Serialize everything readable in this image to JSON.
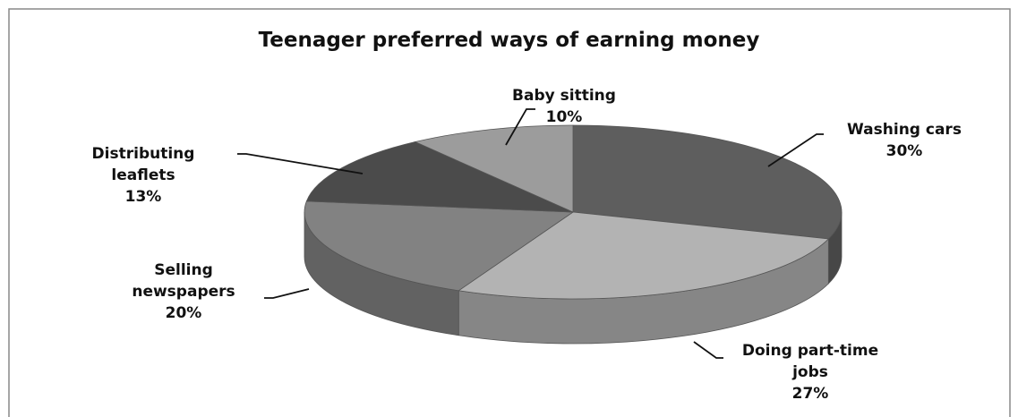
{
  "chart_data": {
    "type": "pie3d",
    "title": "Teenager preferred ways of earning money",
    "categories": [
      "Washing cars",
      "Doing part-time jobs",
      "Selling newspapers",
      "Distributing leaflets",
      "Baby sitting"
    ],
    "values": [
      30,
      27,
      20,
      13,
      10
    ],
    "value_labels": [
      "30%",
      "27%",
      "20%",
      "13%",
      "10%"
    ],
    "colors": [
      "#5e5e5e",
      "#b3b3b3",
      "#828282",
      "#4b4b4b",
      "#9c9c9c"
    ]
  }
}
